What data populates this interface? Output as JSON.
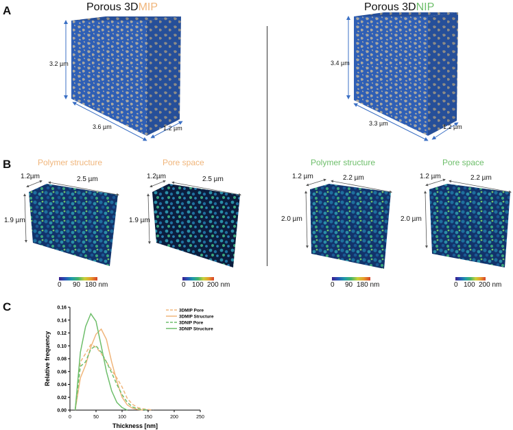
{
  "panels": {
    "a": {
      "letter": "A"
    },
    "b": {
      "letter": "B"
    },
    "c": {
      "letter": "C"
    }
  },
  "mip": {
    "title_prefix": "Porous 3D",
    "title_suffix": "MIP",
    "height": "3.2 µm",
    "width": "3.6 µm",
    "depth": "1.2 µm",
    "polymer_label": "Polymer structure",
    "pore_label": "Pore space",
    "polymer_dims": {
      "depth": "1.2µm",
      "width": "2.5 µm",
      "height": "1.9 µm"
    },
    "pore_dims": {
      "depth": "1.2µm",
      "width": "2.5 µm",
      "height": "1.9 µm"
    },
    "polymer_cbar": [
      "0",
      "90",
      "180 nm"
    ],
    "pore_cbar": [
      "0",
      "100",
      "200 nm"
    ]
  },
  "nip": {
    "title_prefix": "Porous 3D",
    "title_suffix": "NIP",
    "height": "3.4 µm",
    "width": "3.3 µm",
    "depth": "1.2 µm",
    "polymer_label": "Polymer structure",
    "pore_label": "Pore space",
    "polymer_dims": {
      "depth": "1.2 µm",
      "width": "2.2 µm",
      "height": "2.0 µm"
    },
    "pore_dims": {
      "depth": "1.2 µm",
      "width": "2.2 µm",
      "height": "2.0 µm"
    },
    "polymer_cbar": [
      "0",
      "90",
      "180 nm"
    ],
    "pore_cbar": [
      "0",
      "100",
      "200 nm"
    ]
  },
  "colors": {
    "mip": "#F0B57A",
    "nip": "#6DBE6A",
    "cube_blue": "#2F5FB5",
    "cube_gray": "#A9A7A0"
  },
  "chart_data": {
    "type": "line",
    "xlabel": "Thickness [nm]",
    "ylabel": "Relative frequency",
    "xlim": [
      0,
      250
    ],
    "ylim": [
      0,
      0.16
    ],
    "xticks": [
      0,
      50,
      100,
      150,
      200,
      250
    ],
    "yticks": [
      0.0,
      0.02,
      0.04,
      0.06,
      0.08,
      0.1,
      0.12,
      0.14,
      0.16
    ],
    "legend_position": "top-right",
    "series": [
      {
        "name": "3DMIP Pore",
        "color": "#F0B57A",
        "dash": true,
        "x": [
          10,
          20,
          30,
          40,
          50,
          60,
          70,
          80,
          90,
          100,
          110,
          120,
          130,
          140,
          150,
          160
        ],
        "y": [
          0.0,
          0.075,
          0.088,
          0.102,
          0.098,
          0.088,
          0.075,
          0.062,
          0.05,
          0.036,
          0.018,
          0.009,
          0.004,
          0.002,
          0.001,
          0.0
        ]
      },
      {
        "name": "3DMIP Structure",
        "color": "#F0B57A",
        "dash": false,
        "x": [
          10,
          20,
          30,
          40,
          50,
          60,
          70,
          80,
          90,
          100,
          110,
          120,
          130,
          140
        ],
        "y": [
          0.0,
          0.05,
          0.07,
          0.098,
          0.118,
          0.126,
          0.11,
          0.075,
          0.045,
          0.02,
          0.008,
          0.003,
          0.001,
          0.0
        ]
      },
      {
        "name": "3DNIP Pore",
        "color": "#6DBE6A",
        "dash": true,
        "x": [
          10,
          20,
          30,
          40,
          50,
          60,
          70,
          80,
          90,
          100,
          110,
          120,
          130,
          140,
          150
        ],
        "y": [
          0.0,
          0.068,
          0.075,
          0.095,
          0.1,
          0.09,
          0.075,
          0.058,
          0.04,
          0.024,
          0.012,
          0.005,
          0.002,
          0.001,
          0.0
        ]
      },
      {
        "name": "3DNIP Structure",
        "color": "#6DBE6A",
        "dash": false,
        "x": [
          10,
          20,
          30,
          40,
          50,
          60,
          70,
          80,
          90,
          100,
          110
        ],
        "y": [
          0.0,
          0.09,
          0.13,
          0.15,
          0.138,
          0.1,
          0.06,
          0.03,
          0.012,
          0.004,
          0.0
        ]
      }
    ]
  }
}
